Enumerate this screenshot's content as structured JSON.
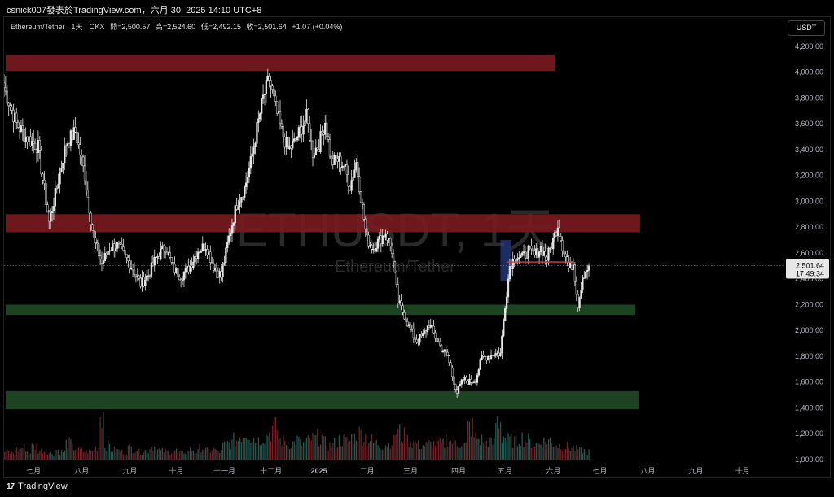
{
  "page": {
    "top_caption": "csnick007發表於TradingView.com，六月 30, 2025 14:10 UTC+8",
    "footer_text": "TradingView",
    "footer_logo": "17"
  },
  "legend": {
    "title": "Ethereum/Tether · 1天 · OKX",
    "open_label": "開=2,500.57",
    "high_label": "高=2,524.60",
    "low_label": "低=2,492.15",
    "close_label": "收=2,501.64",
    "change_label": "+1.07 (+0.04%)"
  },
  "currency_label": "USDT",
  "colors": {
    "background": "#000000",
    "resistance_zone": "#7a1a1f",
    "support_zone": "#1f4a26",
    "candle": "#e6e6e6",
    "volume_up": "#1f5a52",
    "volume_down": "#6b2228",
    "price_line": "#e23b3b",
    "vp_highlight": "#2a3f8a",
    "watermark": "#2a2a2a"
  },
  "watermark": {
    "symbol": "ETHUSDT, 1天",
    "name": "Ethereum/Tether"
  },
  "price_badge": {
    "price": "2,501.64",
    "countdown": "17:49:34"
  },
  "chart_data": {
    "type": "candlestick",
    "title": "Ethereum/Tether · 1天 · OKX",
    "ylim": [
      1000,
      4300
    ],
    "yticks": [
      1000,
      1200,
      1400,
      1600,
      1800,
      2000,
      2200,
      2400,
      2600,
      2800,
      3000,
      3200,
      3400,
      3600,
      3800,
      4000,
      4200
    ],
    "ytick_labels": [
      "1,000.00",
      "1,200.00",
      "1,400.00",
      "1,600.00",
      "1,800.00",
      "2,000.00",
      "2,200.00",
      "2,400.00",
      "2,600.00",
      "2,800.00",
      "3,000.00",
      "3,200.00",
      "3,400.00",
      "3,600.00",
      "3,800.00",
      "4,000.00",
      "4,200.00"
    ],
    "xlabels": [
      "七月",
      "八月",
      "九月",
      "十月",
      "十一月",
      "十二月",
      "2025",
      "二月",
      "三月",
      "四月",
      "五月",
      "六月",
      "七月",
      "八月",
      "九月",
      "十月"
    ],
    "xlabel_days": [
      19,
      50,
      81,
      111,
      142,
      172,
      203,
      234,
      262,
      293,
      323,
      354,
      384,
      415,
      446,
      476
    ],
    "x_range_days": [
      0,
      503
    ],
    "last_day": 377,
    "price_path": [
      [
        0,
        3880
      ],
      [
        8,
        3600
      ],
      [
        14,
        3500
      ],
      [
        22,
        3420
      ],
      [
        29,
        2840
      ],
      [
        33,
        3050
      ],
      [
        40,
        3450
      ],
      [
        46,
        3540
      ],
      [
        52,
        3200
      ],
      [
        58,
        2700
      ],
      [
        63,
        2520
      ],
      [
        68,
        2640
      ],
      [
        73,
        2660
      ],
      [
        78,
        2570
      ],
      [
        83,
        2480
      ],
      [
        88,
        2360
      ],
      [
        93,
        2430
      ],
      [
        98,
        2560
      ],
      [
        104,
        2650
      ],
      [
        109,
        2480
      ],
      [
        114,
        2420
      ],
      [
        119,
        2480
      ],
      [
        125,
        2620
      ],
      [
        130,
        2660
      ],
      [
        135,
        2500
      ],
      [
        140,
        2420
      ],
      [
        145,
        2720
      ],
      [
        150,
        2980
      ],
      [
        155,
        3100
      ],
      [
        159,
        3300
      ],
      [
        163,
        3560
      ],
      [
        167,
        3800
      ],
      [
        171,
        3950
      ],
      [
        175,
        3720
      ],
      [
        179,
        3540
      ],
      [
        183,
        3400
      ],
      [
        187,
        3450
      ],
      [
        191,
        3550
      ],
      [
        195,
        3650
      ],
      [
        199,
        3380
      ],
      [
        203,
        3440
      ],
      [
        207,
        3620
      ],
      [
        211,
        3300
      ],
      [
        215,
        3320
      ],
      [
        219,
        3280
      ],
      [
        223,
        3120
      ],
      [
        227,
        3300
      ],
      [
        231,
        2950
      ],
      [
        234,
        2700
      ],
      [
        238,
        2640
      ],
      [
        242,
        2700
      ],
      [
        246,
        2760
      ],
      [
        250,
        2620
      ],
      [
        254,
        2220
      ],
      [
        258,
        2120
      ],
      [
        262,
        2000
      ],
      [
        266,
        1920
      ],
      [
        270,
        1960
      ],
      [
        274,
        2050
      ],
      [
        278,
        1950
      ],
      [
        282,
        1860
      ],
      [
        286,
        1800
      ],
      [
        289,
        1650
      ],
      [
        292,
        1520
      ],
      [
        296,
        1620
      ],
      [
        300,
        1600
      ],
      [
        304,
        1620
      ],
      [
        308,
        1790
      ],
      [
        312,
        1800
      ],
      [
        316,
        1820
      ],
      [
        320,
        1820
      ],
      [
        323,
        2200
      ],
      [
        326,
        2500
      ],
      [
        330,
        2580
      ],
      [
        334,
        2560
      ],
      [
        338,
        2620
      ],
      [
        342,
        2580
      ],
      [
        346,
        2640
      ],
      [
        350,
        2560
      ],
      [
        354,
        2700
      ],
      [
        357,
        2820
      ],
      [
        360,
        2660
      ],
      [
        364,
        2480
      ],
      [
        367,
        2520
      ],
      [
        370,
        2200
      ],
      [
        373,
        2420
      ],
      [
        377,
        2502
      ]
    ],
    "volume_relative": [
      0.12,
      0.1,
      0.15,
      0.18,
      0.12,
      0.2,
      0.14,
      0.13,
      0.1,
      0.15,
      0.12,
      0.25,
      0.18,
      0.14,
      0.12,
      0.13,
      0.18,
      0.72,
      0.22,
      0.15,
      0.14,
      0.12,
      0.18,
      0.16,
      0.12,
      0.14,
      0.2,
      0.15,
      0.13,
      0.12,
      0.14,
      0.1,
      0.12,
      0.15,
      0.12,
      0.18,
      0.14,
      0.16,
      0.12,
      0.22,
      0.25,
      0.3,
      0.38,
      0.42,
      0.34,
      0.3,
      0.36,
      0.42,
      0.48,
      0.3,
      0.28,
      0.25,
      0.3,
      0.24,
      0.28,
      0.32,
      0.34,
      0.26,
      0.22,
      0.25,
      0.3,
      0.28,
      0.34,
      0.4,
      0.36,
      0.3,
      0.25,
      0.22,
      0.24,
      0.28,
      0.42,
      0.36,
      0.3,
      0.26,
      0.22,
      0.22,
      0.24,
      0.26,
      0.24,
      0.32,
      0.28,
      0.25,
      0.22,
      0.5,
      0.34,
      0.3,
      0.28,
      0.25,
      0.6,
      0.36,
      0.3,
      0.28,
      0.34,
      0.3,
      0.26,
      0.24,
      0.28,
      0.3,
      0.24,
      0.22,
      0.2,
      0.18,
      0.16,
      0.14,
      0.12
    ],
    "zones": [
      {
        "kind": "resistance",
        "from": 4010,
        "to": 4130,
        "x_end_day": 355
      },
      {
        "kind": "resistance",
        "from": 2760,
        "to": 2900,
        "x_end_day": 410
      },
      {
        "kind": "support",
        "from": 2120,
        "to": 2200,
        "x_end_day": 407
      },
      {
        "kind": "support",
        "from": 1390,
        "to": 1530,
        "x_end_day": 409
      }
    ],
    "current_price": 2501.64,
    "last_close_line": 2530,
    "last_close_line_days": [
      324,
      367
    ],
    "volume_profile_highlight": {
      "from_day": 320,
      "to_day": 327,
      "low": 2380,
      "high": 2700
    }
  }
}
